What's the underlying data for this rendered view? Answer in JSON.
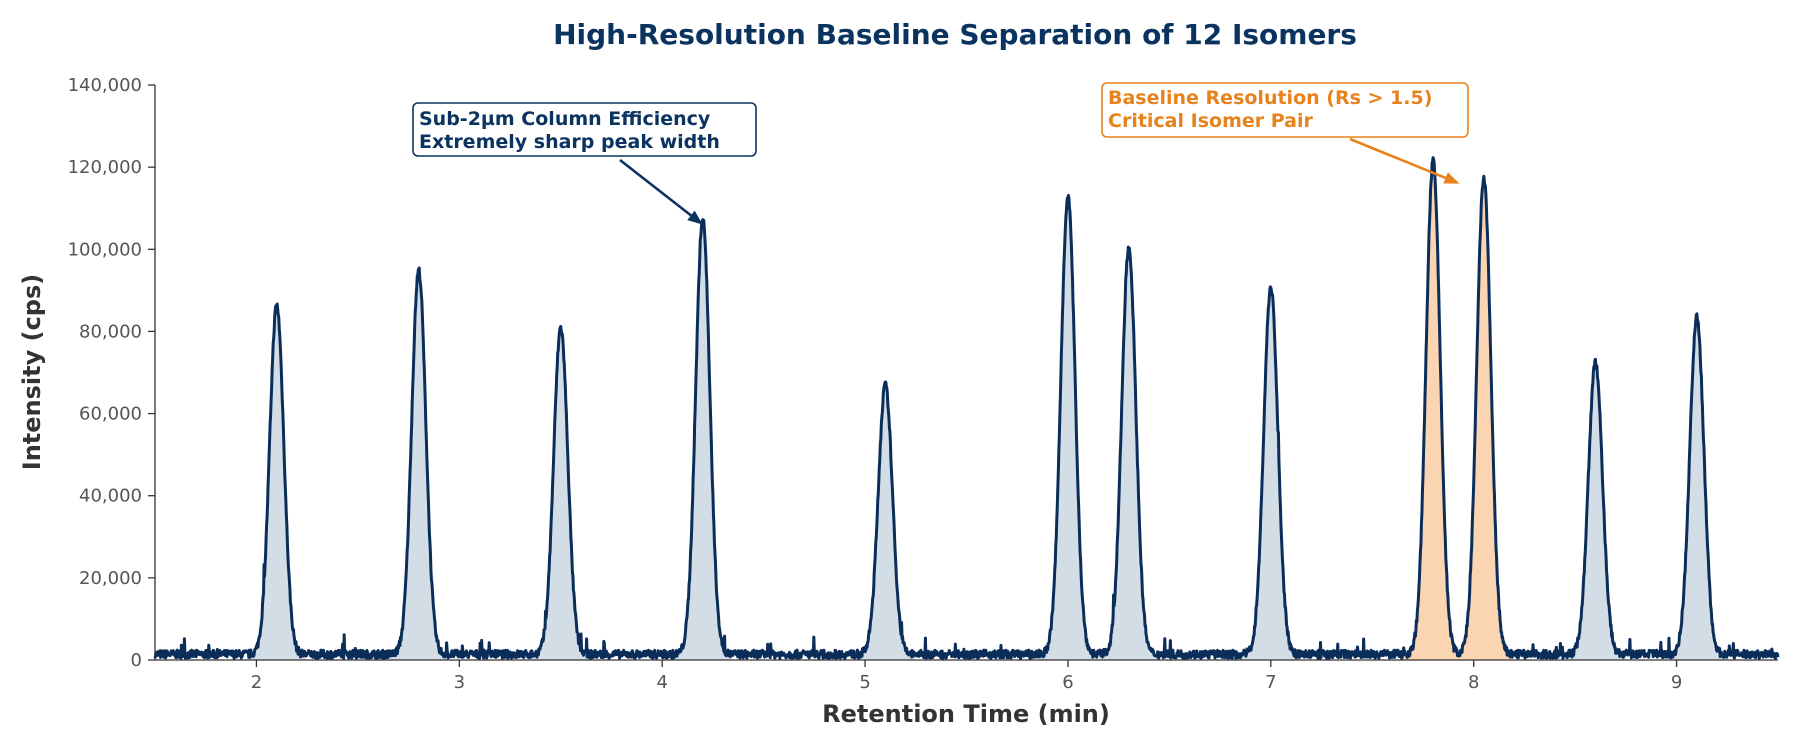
{
  "chart_data": {
    "type": "line",
    "title": "High-Resolution Baseline Separation of 12 Isomers",
    "xlabel": "Retention Time (min)",
    "ylabel": "Intensity (cps)",
    "xlim": [
      1.5,
      9.5
    ],
    "ylim": [
      0,
      140000
    ],
    "x_ticks": [
      2,
      3,
      4,
      5,
      6,
      7,
      8,
      9
    ],
    "x_tick_labels": [
      "2",
      "3",
      "4",
      "5",
      "6",
      "7",
      "8",
      "9"
    ],
    "y_ticks": [
      0,
      20000,
      40000,
      60000,
      80000,
      100000,
      120000,
      140000
    ],
    "y_tick_labels": [
      "0",
      "20,000",
      "40,000",
      "60,000",
      "80,000",
      "100,000",
      "120,000",
      "140,000"
    ],
    "grid": false,
    "baseline_noise_level": 2000,
    "peaks": [
      {
        "rt": 2.1,
        "height": 85000,
        "critical": false
      },
      {
        "rt": 2.8,
        "height": 93500,
        "critical": false
      },
      {
        "rt": 3.5,
        "height": 79500,
        "critical": false
      },
      {
        "rt": 4.2,
        "height": 106000,
        "critical": false
      },
      {
        "rt": 5.1,
        "height": 65500,
        "critical": false
      },
      {
        "rt": 6.0,
        "height": 111500,
        "critical": false
      },
      {
        "rt": 6.3,
        "height": 99000,
        "critical": false
      },
      {
        "rt": 7.0,
        "height": 89500,
        "critical": false
      },
      {
        "rt": 7.8,
        "height": 120000,
        "critical": true
      },
      {
        "rt": 8.05,
        "height": 116000,
        "critical": true
      },
      {
        "rt": 8.6,
        "height": 71000,
        "critical": false
      },
      {
        "rt": 9.1,
        "height": 82000,
        "critical": false
      }
    ],
    "annotations": [
      {
        "id": "efficiency",
        "lines": [
          "Sub-2µm Column Efficiency",
          "Extremely sharp peak width"
        ],
        "target": {
          "x": 4.2,
          "y": 106000
        },
        "color": "#0b3360"
      },
      {
        "id": "resolution",
        "lines": [
          "Baseline Resolution (Rs > 1.5)",
          "Critical Isomer Pair"
        ],
        "target": {
          "x": 7.93,
          "y": 116000
        },
        "color": "#e8821c"
      }
    ],
    "colors": {
      "line": "#0b2d5a",
      "fill": "#d3dde5",
      "critical_fill": "#fbd5b1",
      "accent": "#e8821c",
      "title": "#0b3360"
    }
  }
}
